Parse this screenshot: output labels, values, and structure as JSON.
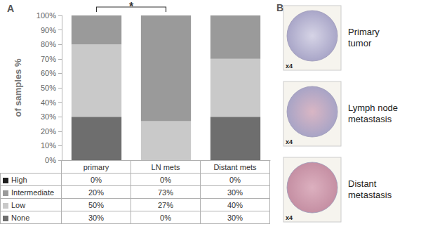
{
  "chart_data": {
    "type": "bar",
    "categories": [
      "primary",
      "LN mets",
      "Distant mets"
    ],
    "series": [
      {
        "name": "High",
        "color": "#1f1f1f",
        "values": [
          0,
          0,
          0
        ],
        "value_labels": [
          "0%",
          "0%",
          "0%"
        ]
      },
      {
        "name": "Intermediate",
        "color": "#9a9a9a",
        "values": [
          20,
          73,
          30
        ],
        "value_labels": [
          "20%",
          "73%",
          "30%"
        ]
      },
      {
        "name": "Low",
        "color": "#c9c9c9",
        "values": [
          50,
          27,
          40
        ],
        "value_labels": [
          "50%",
          "27%",
          "40%"
        ]
      },
      {
        "name": "None",
        "color": "#6e6e6e",
        "values": [
          30,
          0,
          30
        ],
        "value_labels": [
          "30%",
          "0%",
          "30%"
        ]
      }
    ],
    "y_label": "of samples %",
    "ylim": [
      0,
      100
    ],
    "yticks": [
      {
        "value": 0,
        "label": "0%"
      },
      {
        "value": 10,
        "label": "10%"
      },
      {
        "value": 20,
        "label": "20%"
      },
      {
        "value": 30,
        "label": "30%"
      },
      {
        "value": 40,
        "label": "40%"
      },
      {
        "value": 50,
        "label": "50%"
      },
      {
        "value": 60,
        "label": "60%"
      },
      {
        "value": 70,
        "label": "70%"
      },
      {
        "value": 80,
        "label": "80%"
      },
      {
        "value": 90,
        "label": "90%"
      },
      {
        "value": 100,
        "label": "100%"
      }
    ],
    "stacked": true,
    "grid": false,
    "annotations": [
      {
        "text": "*",
        "from": "primary",
        "to": "LN mets"
      }
    ]
  },
  "panel_a": {
    "label": "A"
  },
  "panel_b": {
    "label": "B",
    "images": [
      {
        "caption": "Primary tumor",
        "magnification": "x4"
      },
      {
        "caption": "Lymph node metastasis",
        "magnification": "x4"
      },
      {
        "caption": "Distant metastasis",
        "magnification": "x4"
      }
    ]
  }
}
